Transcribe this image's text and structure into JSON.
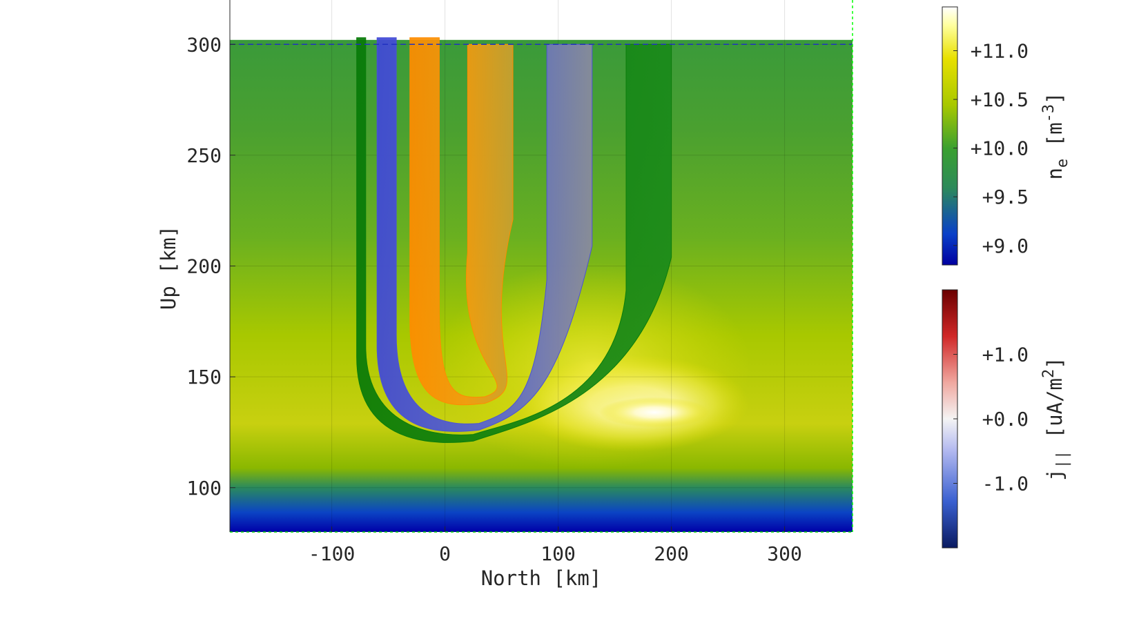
{
  "chart_data": [
    {
      "type": "heatmap",
      "title": "",
      "xlabel": "North [km]",
      "ylabel": "Up [km]",
      "xlim": [
        -190,
        360
      ],
      "ylim": [
        80,
        320
      ],
      "x_ticks": [
        -100,
        0,
        100,
        200,
        300
      ],
      "x_tick_labels": [
        "-100",
        "0",
        "100",
        "200",
        "300"
      ],
      "y_ticks": [
        100,
        150,
        200,
        250,
        300
      ],
      "y_tick_labels": [
        "100",
        "150",
        "200",
        "250",
        "300"
      ],
      "grid": true,
      "reference_line_altitude_km": 300,
      "colorscale_variable": "log10 ne",
      "field_line_bands": [
        {
          "color": "#0a7d0a",
          "west_foot_x": -78,
          "east_foot_x": 200,
          "west_width": 8,
          "east_width": 40,
          "min_alt": 119,
          "apex_x": 0
        },
        {
          "color": "#4a52d6",
          "west_foot_x": -60,
          "east_foot_x": 130,
          "west_width": 17,
          "east_width": 40,
          "min_alt": 124,
          "apex_x": 5
        },
        {
          "color": "#ff8c00",
          "west_foot_x": -31,
          "east_foot_x": 60,
          "west_width": 26,
          "east_width": 40,
          "min_alt": 136,
          "apex_x": 10
        }
      ]
    },
    {
      "type": "heatmap",
      "colorbar": "ne",
      "label_text": "n",
      "label_sub": "e",
      "label_unit_open": " [m",
      "label_sup": "-3",
      "label_unit_close": "]",
      "ticks": [
        11.0,
        10.5,
        10.0,
        9.5,
        9.0
      ],
      "tick_labels": [
        "+11.0",
        "+10.5",
        "+10.0",
        "+9.5",
        "+9.0"
      ],
      "range": [
        8.8,
        11.45
      ],
      "colormap": [
        "#0000a0",
        "#0a40c8",
        "#2d8a5a",
        "#3aa030",
        "#a8c800",
        "#e8e000",
        "#ffffa0",
        "#ffffff"
      ]
    },
    {
      "type": "heatmap",
      "colorbar": "j_parallel",
      "label_text": "j",
      "label_sub": "||",
      "label_unit_open": " [uA/m",
      "label_sup": "2",
      "label_unit_close": "]",
      "ticks": [
        1.0,
        0.0,
        -1.0
      ],
      "tick_labels": [
        "+1.0",
        "+0.0",
        "-1.0"
      ],
      "range": [
        -2.0,
        2.0
      ],
      "colormap": [
        "#0a1a60",
        "#3a60d0",
        "#b4baf0",
        "#f4f4f4",
        "#f0a8a0",
        "#d02828",
        "#6a0000"
      ]
    }
  ]
}
